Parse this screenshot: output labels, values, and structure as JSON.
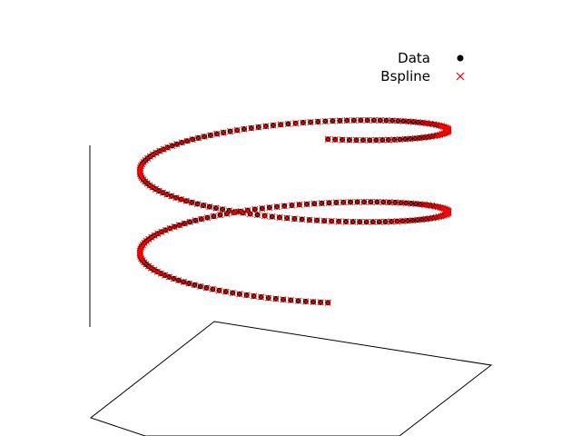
{
  "chart_data": {
    "type": "scatter",
    "projection": "3d",
    "legend": {
      "placement": "top-right"
    },
    "grid": false,
    "series": [
      {
        "name": "Data",
        "marker": "circle",
        "color": "#000000",
        "curve": "helix",
        "turns": 2,
        "radius": 1,
        "z_range": [
          0,
          1
        ],
        "n_points": 260
      },
      {
        "name": "Bspline",
        "marker": "x",
        "color": "#ff0000",
        "curve": "helix",
        "turns": 2,
        "radius": 1,
        "z_range": [
          0,
          1
        ],
        "n_points": 260
      }
    ]
  }
}
